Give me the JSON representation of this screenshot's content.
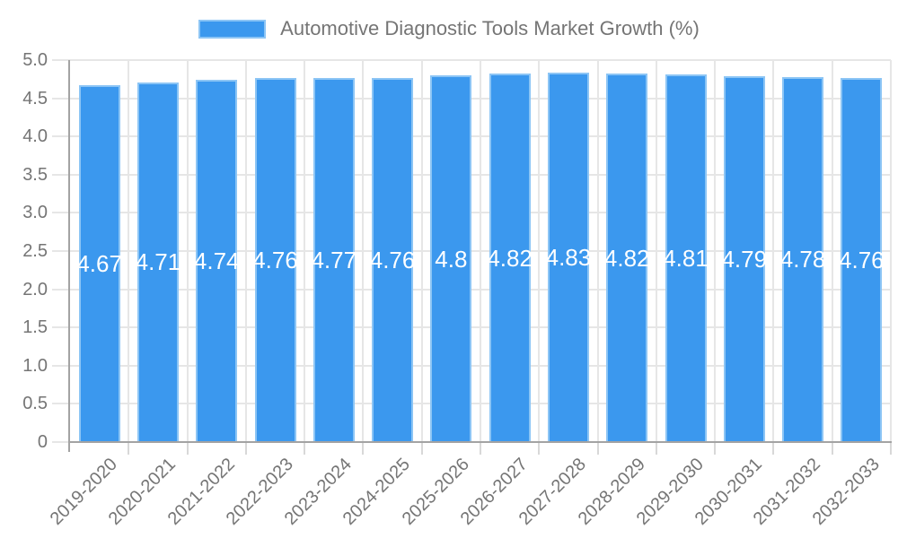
{
  "chart_data": {
    "type": "bar",
    "title": "Automotive Diagnostic Tools Market Growth (%)",
    "legend_position": "top",
    "grid": true,
    "categories": [
      "2019-2020",
      "2020-2021",
      "2021-2022",
      "2022-2023",
      "2023-2024",
      "2024-2025",
      "2025-2026",
      "2026-2027",
      "2027-2028",
      "2028-2029",
      "2029-2030",
      "2030-2031",
      "2031-2032",
      "2032-2033"
    ],
    "values": [
      4.67,
      4.71,
      4.74,
      4.76,
      4.77,
      4.76,
      4.8,
      4.82,
      4.83,
      4.82,
      4.81,
      4.79,
      4.78,
      4.76
    ],
    "value_labels": [
      "4.67",
      "4.71",
      "4.74",
      "4.76",
      "4.77",
      "4.76",
      "4.8",
      "4.82",
      "4.83",
      "4.82",
      "4.81",
      "4.79",
      "4.78",
      "4.76"
    ],
    "ylim": [
      0,
      5
    ],
    "ytick_step": 0.5,
    "ytick_values": [
      0,
      0.5,
      1,
      1.5,
      2,
      2.5,
      3,
      3.5,
      4,
      4.5,
      5
    ],
    "ytick_labels": [
      "0",
      "0.5",
      "1.0",
      "1.5",
      "2.0",
      "2.5",
      "3.0",
      "3.5",
      "4.0",
      "4.5",
      "5.0"
    ],
    "colors": {
      "bar": "#3b98ee",
      "bar_border": "#8cc5f5",
      "grid": "#e6e6e6",
      "axis": "#a3a3a3",
      "tick": "#d8d8d8",
      "text": "#757575",
      "value_text": "#ffffff"
    }
  }
}
